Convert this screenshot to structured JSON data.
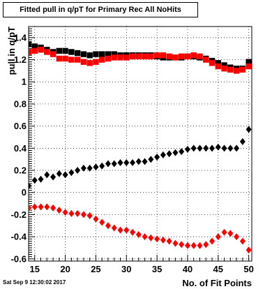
{
  "chart_data": {
    "type": "scatter",
    "title": "Fitted pull in q/pT for Primary Rec All NoHits",
    "xlabel": "No. of Fit Points",
    "ylabel": "pull in q/pT",
    "xlim": [
      14,
      50.5
    ],
    "ylim": [
      -0.62,
      1.5
    ],
    "grid": true,
    "x_ticks": [
      15,
      20,
      25,
      30,
      35,
      40,
      45,
      50
    ],
    "y_ticks": [
      -0.6,
      -0.4,
      -0.2,
      0,
      0.2,
      0.4,
      0.6,
      0.8,
      1,
      1.2,
      1.4
    ],
    "y_tick_labels": [
      "-0.6",
      "-0.4",
      "-0.2",
      "0",
      "0.2",
      "0.4",
      "0.6",
      "0.8",
      "1",
      "1.2",
      "1.4"
    ],
    "x": [
      14,
      15,
      16,
      17,
      18,
      19,
      20,
      21,
      22,
      23,
      24,
      25,
      26,
      27,
      28,
      29,
      30,
      31,
      32,
      33,
      34,
      35,
      36,
      37,
      38,
      39,
      40,
      41,
      42,
      43,
      44,
      45,
      46,
      47,
      48,
      49,
      50
    ],
    "series": [
      {
        "marker": "square",
        "color": "#000000",
        "values": [
          1.34,
          1.32,
          1.31,
          1.29,
          1.27,
          1.28,
          1.28,
          1.27,
          1.26,
          1.25,
          1.24,
          1.25,
          1.25,
          1.25,
          1.25,
          1.24,
          1.24,
          1.24,
          1.24,
          1.24,
          1.24,
          1.23,
          1.22,
          1.22,
          1.22,
          1.22,
          1.23,
          1.23,
          1.22,
          1.21,
          1.19,
          1.17,
          1.15,
          1.13,
          1.12,
          1.12,
          1.18
        ]
      },
      {
        "marker": "square",
        "color": "#ff0000",
        "values": [
          1.27,
          1.28,
          1.29,
          1.27,
          1.25,
          1.21,
          1.21,
          1.2,
          1.2,
          1.18,
          1.17,
          1.18,
          1.2,
          1.21,
          1.22,
          1.22,
          1.22,
          1.23,
          1.23,
          1.23,
          1.23,
          1.24,
          1.24,
          1.23,
          1.22,
          1.23,
          1.23,
          1.24,
          1.23,
          1.2,
          1.17,
          1.14,
          1.12,
          1.11,
          1.1,
          1.11,
          1.14
        ]
      },
      {
        "marker": "diamond",
        "color": "#000000",
        "values": [
          0.06,
          0.11,
          0.12,
          0.16,
          0.14,
          0.17,
          0.16,
          0.18,
          0.2,
          0.22,
          0.22,
          0.23,
          0.24,
          0.26,
          0.26,
          0.27,
          0.27,
          0.27,
          0.28,
          0.28,
          0.3,
          0.32,
          0.34,
          0.35,
          0.36,
          0.37,
          0.39,
          0.4,
          0.4,
          0.4,
          0.4,
          0.41,
          0.4,
          0.4,
          0.4,
          0.46,
          0.57
        ]
      },
      {
        "marker": "diamond",
        "color": "#ff0000",
        "values": [
          -0.14,
          -0.13,
          -0.13,
          -0.13,
          -0.14,
          -0.16,
          -0.18,
          -0.19,
          -0.19,
          -0.2,
          -0.21,
          -0.24,
          -0.27,
          -0.3,
          -0.32,
          -0.34,
          -0.34,
          -0.36,
          -0.38,
          -0.4,
          -0.41,
          -0.42,
          -0.43,
          -0.44,
          -0.46,
          -0.47,
          -0.48,
          -0.48,
          -0.48,
          -0.47,
          -0.44,
          -0.4,
          -0.36,
          -0.37,
          -0.4,
          -0.44,
          -0.52
        ]
      }
    ]
  },
  "footer": {
    "timestamp": "Sat Sep  9 12:30:02 2017"
  }
}
